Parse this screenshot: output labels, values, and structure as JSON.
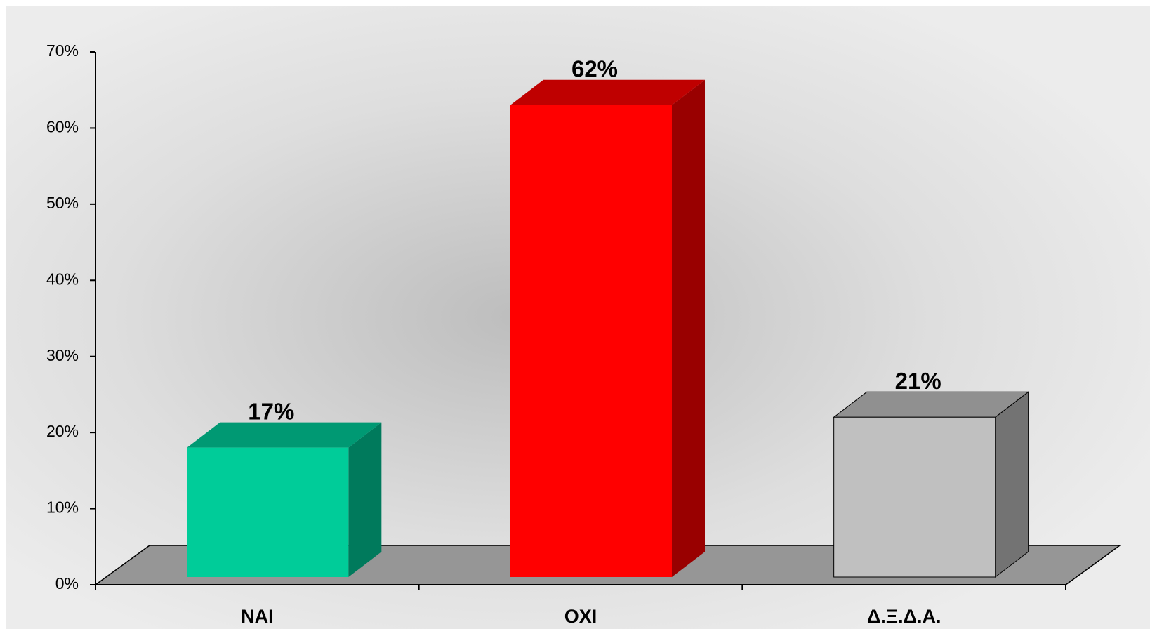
{
  "chart_data": {
    "type": "bar3d",
    "categories": [
      "NAI",
      "OXI",
      "Δ.Ξ.Δ.Α."
    ],
    "values": [
      17,
      62,
      21
    ],
    "value_labels": [
      "17%",
      "62%",
      "21%"
    ],
    "colors": [
      "#00cc99",
      "#ff0000",
      "#c0c0c0"
    ],
    "ylim": [
      0,
      70
    ],
    "yticks": [
      {
        "value": 0,
        "label": "0%"
      },
      {
        "value": 10,
        "label": "10%"
      },
      {
        "value": 20,
        "label": "20%"
      },
      {
        "value": 30,
        "label": "30%"
      },
      {
        "value": 40,
        "label": "40%"
      },
      {
        "value": 50,
        "label": "50%"
      },
      {
        "value": 60,
        "label": "60%"
      },
      {
        "value": 70,
        "label": "70%"
      }
    ]
  }
}
